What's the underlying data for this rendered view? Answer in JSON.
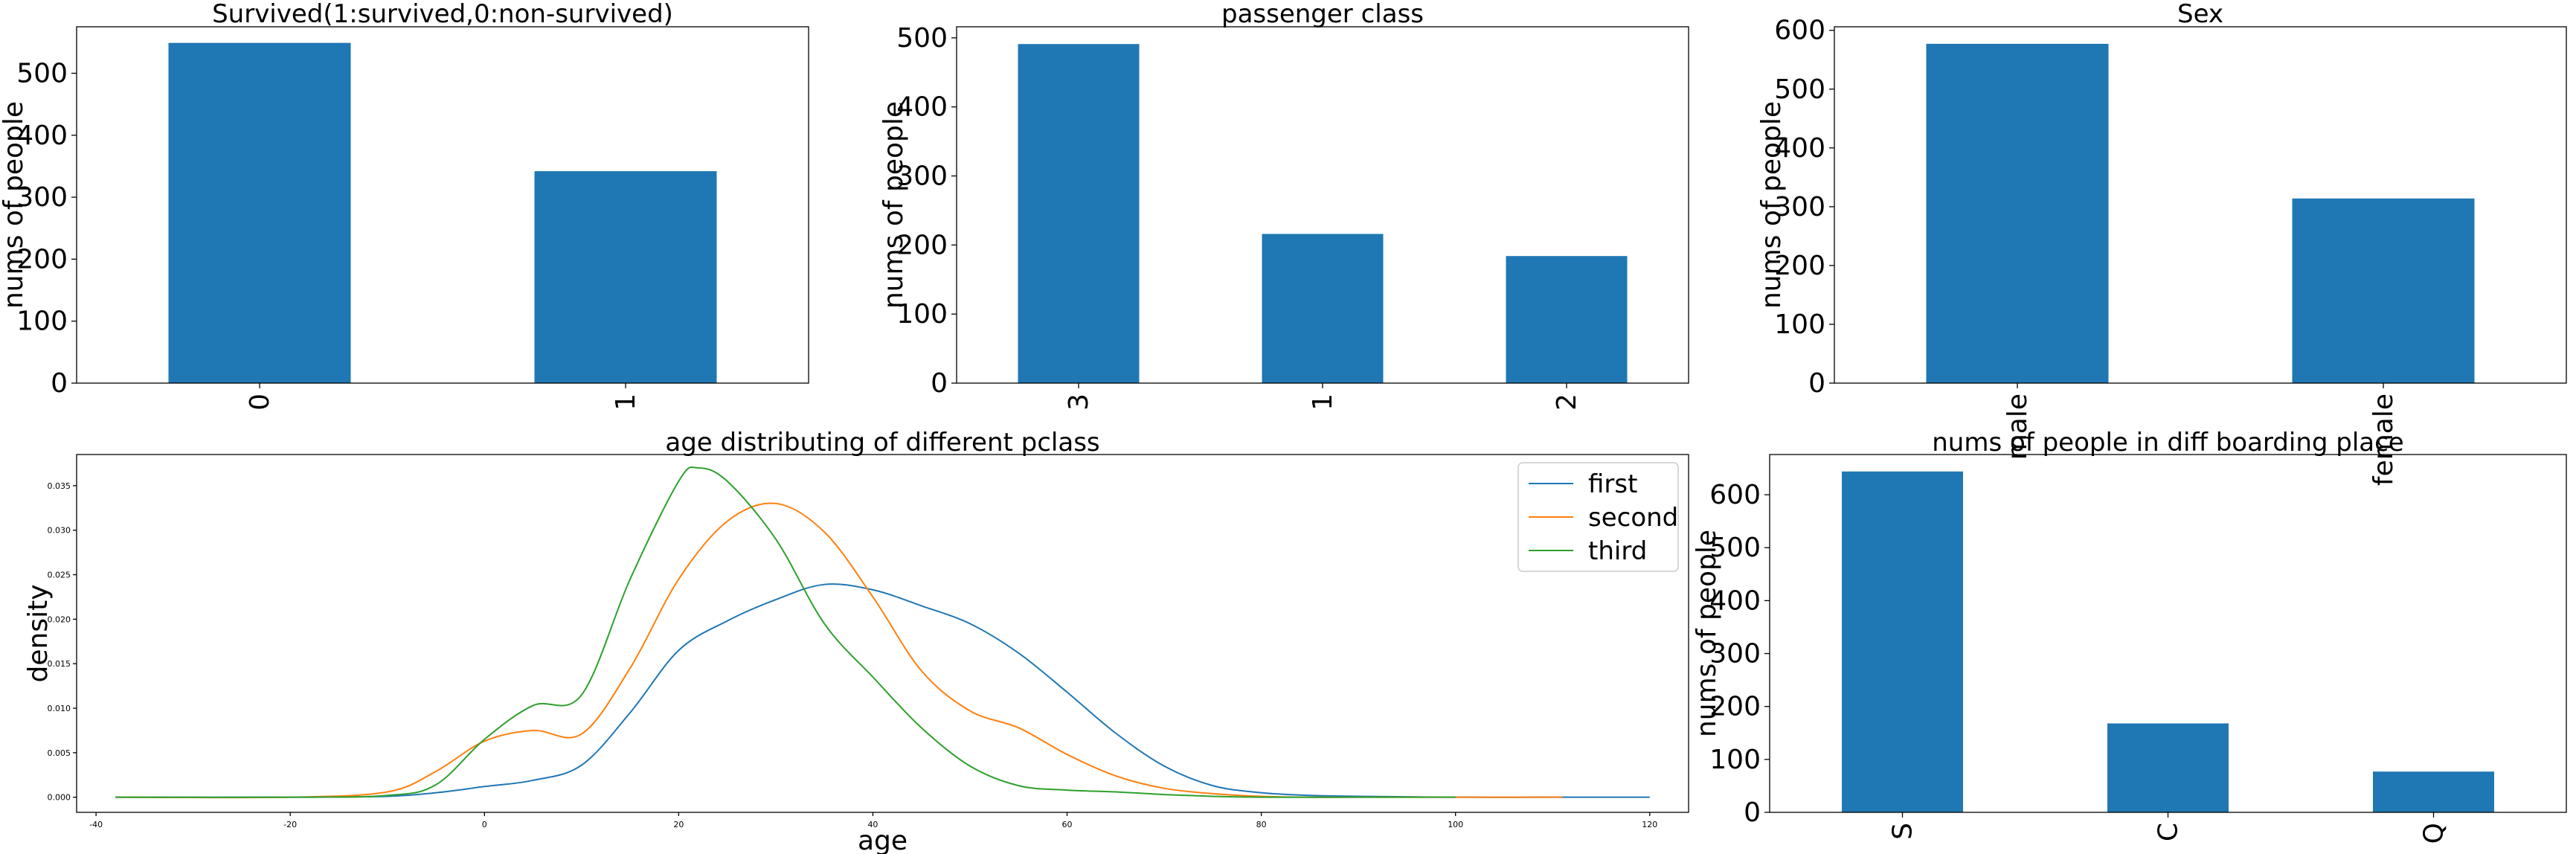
{
  "chart_data": [
    {
      "type": "bar",
      "title": "Survived(1:survived,0:non-survived)",
      "ylabel": "nums of people",
      "xlabel": "",
      "categories": [
        "0",
        "1"
      ],
      "values": [
        549,
        342
      ],
      "ylim": [
        0,
        575
      ],
      "yticks": [
        0,
        100,
        200,
        300,
        400,
        500
      ],
      "color": "#1f77b4",
      "grid": false
    },
    {
      "type": "bar",
      "title": "passenger class",
      "ylabel": "nums of people",
      "xlabel": "",
      "categories": [
        "3",
        "1",
        "2"
      ],
      "values": [
        491,
        216,
        184
      ],
      "ylim": [
        0,
        516
      ],
      "yticks": [
        0,
        100,
        200,
        300,
        400,
        500
      ],
      "color": "#1f77b4",
      "grid": false
    },
    {
      "type": "bar",
      "title": "Sex",
      "ylabel": "nums of people",
      "xlabel": "",
      "categories": [
        "male",
        "female"
      ],
      "values": [
        577,
        314
      ],
      "ylim": [
        0,
        606
      ],
      "yticks": [
        0,
        100,
        200,
        300,
        400,
        500,
        600
      ],
      "color": "#1f77b4",
      "grid": false
    },
    {
      "type": "line",
      "title": "age distributing of different pclass",
      "ylabel": "density",
      "xlabel": "age",
      "xlim": [
        -42,
        124
      ],
      "ylim": [
        -0.0017,
        0.0385
      ],
      "xticks": [
        -40,
        -20,
        0,
        20,
        40,
        60,
        80,
        100,
        120
      ],
      "yticks": [
        "0.000",
        "0.005",
        "0.010",
        "0.015",
        "0.020",
        "0.025",
        "0.030",
        "0.035"
      ],
      "legend_position": "top-right",
      "grid": false,
      "series": [
        {
          "name": "first",
          "color": "#1f77b4",
          "x": [
            -38,
            -20,
            -10,
            -5,
            0,
            5,
            10,
            15,
            20,
            25,
            30,
            35,
            40,
            45,
            50,
            55,
            60,
            65,
            70,
            75,
            80,
            85,
            90,
            100,
            110,
            120
          ],
          "y": [
            0.0,
            0.0,
            0.0001,
            0.0005,
            0.0012,
            0.0019,
            0.0036,
            0.0095,
            0.0165,
            0.0198,
            0.0222,
            0.0239,
            0.0233,
            0.0215,
            0.0195,
            0.0162,
            0.0118,
            0.0072,
            0.0035,
            0.0013,
            0.0005,
            0.0002,
            0.0001,
            0.0,
            0.0,
            0.0
          ]
        },
        {
          "name": "second",
          "color": "#ff7f0e",
          "x": [
            -38,
            -20,
            -10,
            -5,
            0,
            5,
            10,
            15,
            20,
            25,
            30,
            35,
            40,
            45,
            50,
            55,
            60,
            65,
            70,
            75,
            80,
            85,
            90,
            100,
            111
          ],
          "y": [
            0.0,
            0.0,
            0.0006,
            0.0029,
            0.0063,
            0.0075,
            0.0071,
            0.0145,
            0.0245,
            0.031,
            0.033,
            0.0298,
            0.0225,
            0.0142,
            0.0097,
            0.0078,
            0.0048,
            0.0024,
            0.001,
            0.0004,
            0.0001,
            0.0,
            0.0,
            0.0,
            0.0
          ]
        },
        {
          "name": "third",
          "color": "#2ca02c",
          "x": [
            -38,
            -20,
            -10,
            -5,
            0,
            5,
            10,
            15,
            20,
            22,
            25,
            30,
            35,
            40,
            45,
            50,
            55,
            60,
            65,
            70,
            75,
            80,
            90,
            100
          ],
          "y": [
            0.0,
            0.0,
            0.0002,
            0.0014,
            0.0065,
            0.0103,
            0.0115,
            0.0245,
            0.0355,
            0.037,
            0.0355,
            0.029,
            0.0195,
            0.0135,
            0.0078,
            0.0035,
            0.0013,
            0.0008,
            0.0006,
            0.0003,
            0.0001,
            0.0,
            0.0,
            0.0
          ]
        }
      ]
    },
    {
      "type": "bar",
      "title": "nums of people in diff boarding place",
      "ylabel": "nums of people",
      "xlabel": "",
      "categories": [
        "S",
        "C",
        "Q"
      ],
      "values": [
        644,
        168,
        77
      ],
      "ylim": [
        0,
        676
      ],
      "yticks": [
        0,
        100,
        200,
        300,
        400,
        500,
        600
      ],
      "color": "#1f77b4",
      "grid": false
    }
  ]
}
